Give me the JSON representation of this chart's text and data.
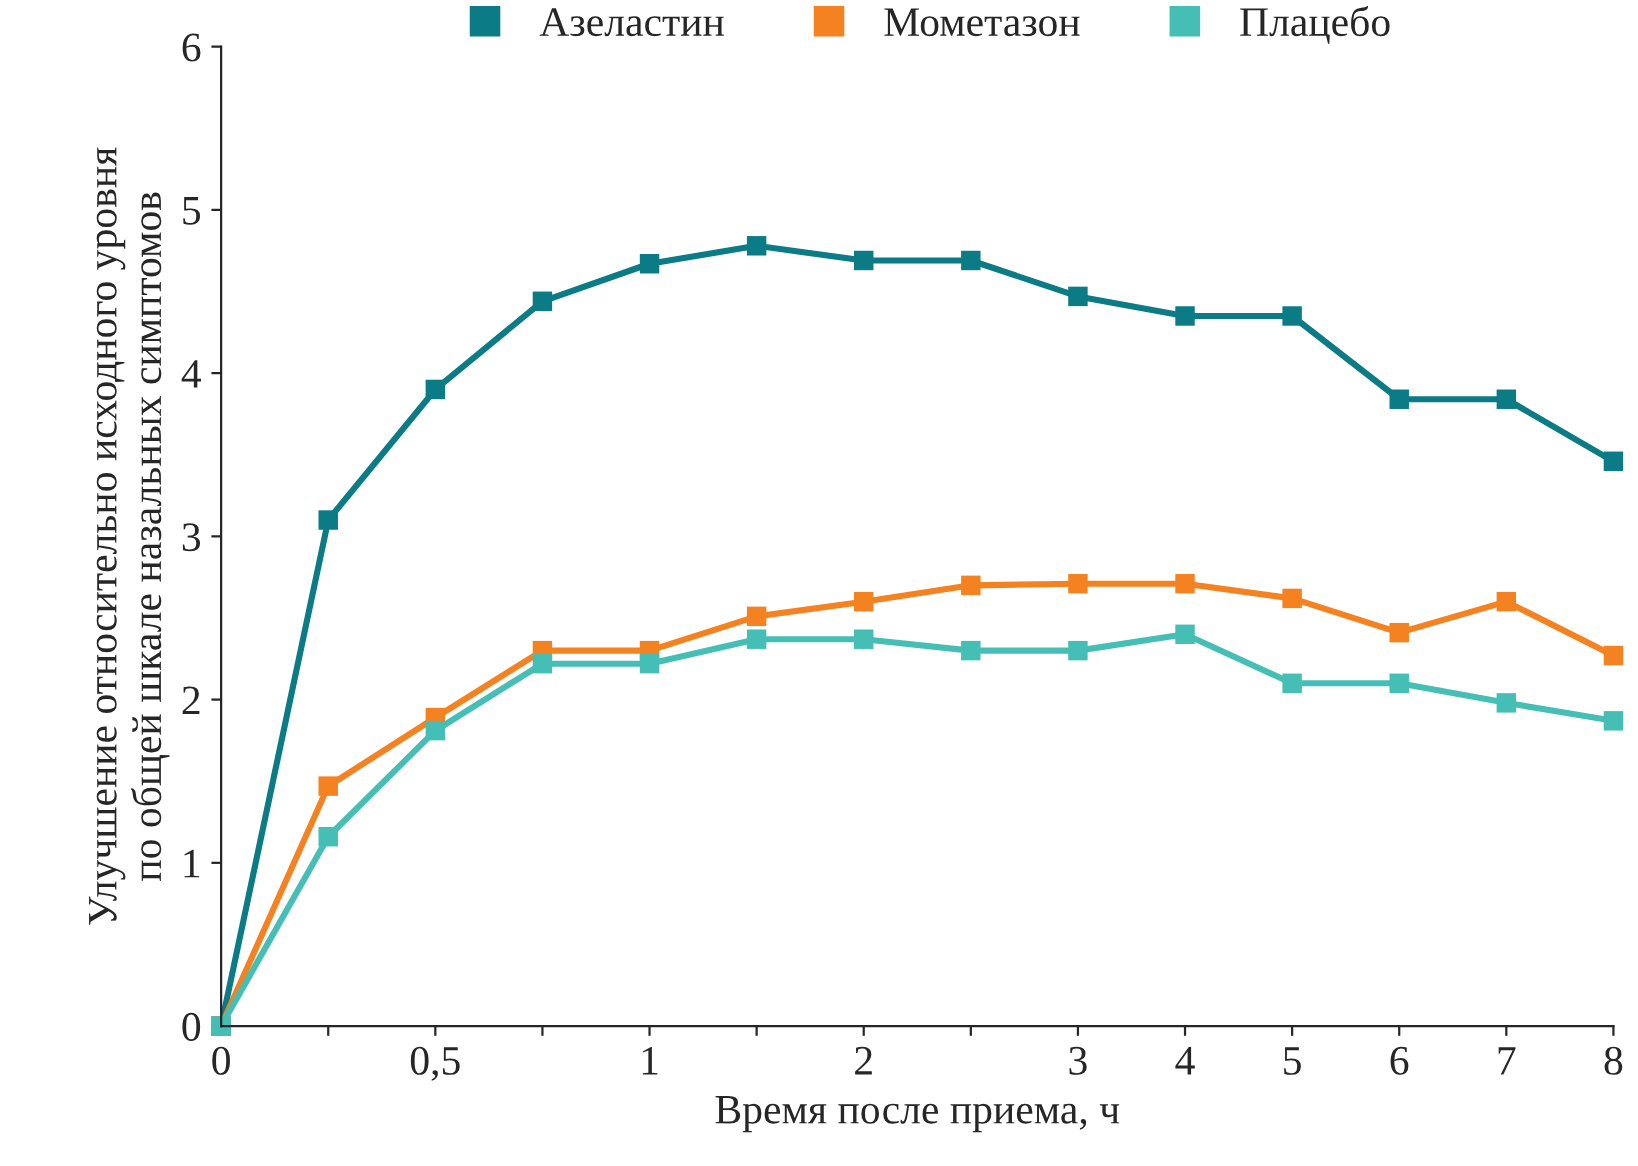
{
  "chart_data": {
    "type": "line",
    "xlabel": "Время после приема, ч",
    "ylabel": "Улучшение относительно исходного уровня\nпо общей шкале назальных симптомов",
    "categories": [
      "0",
      null,
      "0,5",
      null,
      "1",
      null,
      "2",
      null,
      "3",
      "4",
      "5",
      "6",
      "7",
      "8"
    ],
    "series": [
      {
        "name": "Азеластин",
        "color": "#0b7b85",
        "values": [
          0,
          3.1,
          3.9,
          4.44,
          4.67,
          4.78,
          4.69,
          4.69,
          4.47,
          4.35,
          4.35,
          3.84,
          3.84,
          3.46
        ]
      },
      {
        "name": "Мометазон",
        "color": "#f58220",
        "values": [
          0,
          1.47,
          1.89,
          2.3,
          2.3,
          2.51,
          2.6,
          2.7,
          2.71,
          2.71,
          2.62,
          2.41,
          2.6,
          2.27
        ]
      },
      {
        "name": "Плацебо",
        "color": "#45bfb5",
        "values": [
          0,
          1.16,
          1.81,
          2.22,
          2.22,
          2.37,
          2.37,
          2.3,
          2.3,
          2.4,
          2.1,
          2.1,
          1.98,
          1.87
        ]
      }
    ],
    "ylim": [
      0,
      6
    ],
    "yticks": [
      0,
      1,
      2,
      3,
      4,
      5,
      6
    ],
    "grid": false,
    "legend": "top",
    "marker": "square",
    "line_style": "solid"
  }
}
